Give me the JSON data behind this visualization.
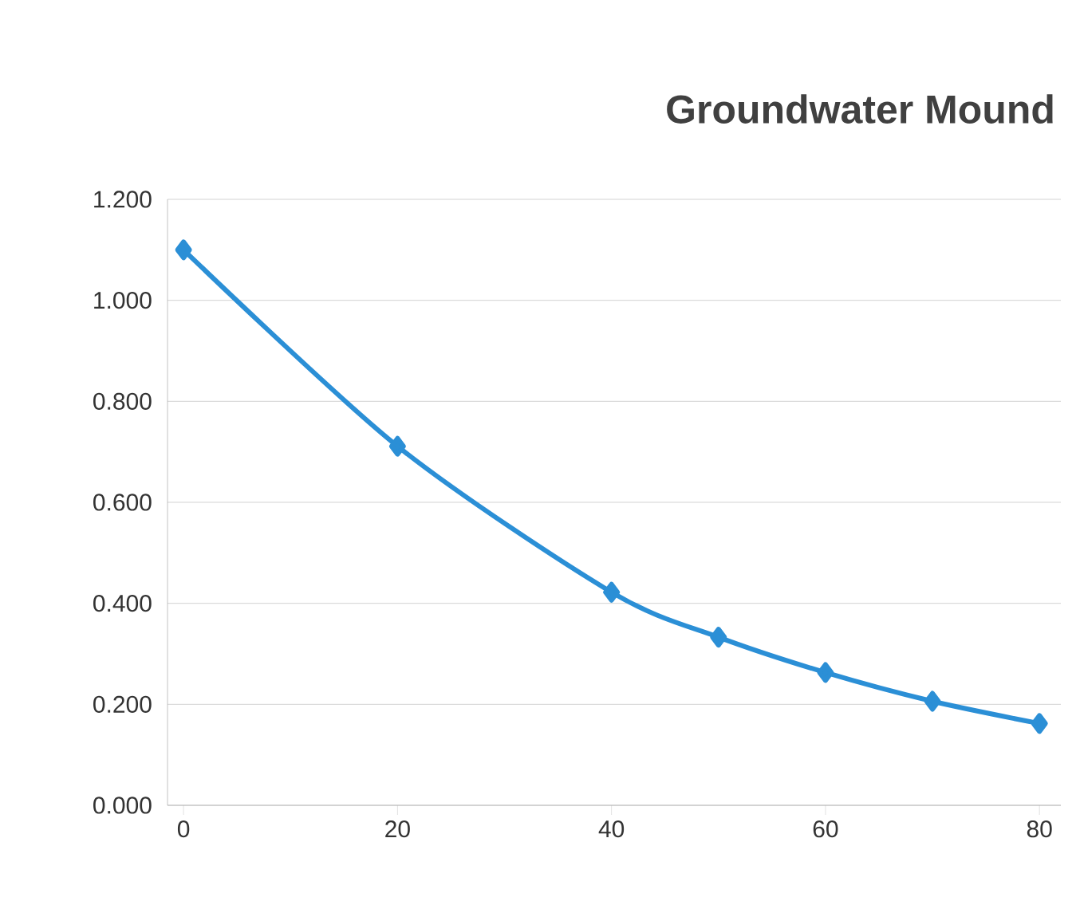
{
  "chart_data": {
    "type": "line",
    "title": "Groundwater Mound",
    "x": [
      0,
      20,
      40,
      50,
      60,
      70,
      80
    ],
    "series": [
      {
        "color": "#2b8fd6",
        "values": [
          1.1,
          0.711,
          0.422,
          0.333,
          0.263,
          0.206,
          0.162
        ]
      }
    ],
    "xlim": [
      -1.5,
      82
    ],
    "xticks": [
      0,
      20,
      40,
      60,
      80
    ],
    "ylim": [
      0,
      1.2
    ],
    "yticks": [
      {
        "value": 0,
        "label": "0.000"
      },
      {
        "value": 0.2,
        "label": "0.200"
      },
      {
        "value": 0.4,
        "label": "0.400"
      },
      {
        "value": 0.6,
        "label": "0.600"
      },
      {
        "value": 0.8,
        "label": "0.800"
      },
      {
        "value": 1.0,
        "label": "1.000"
      },
      {
        "value": 1.2,
        "label": "1.200"
      }
    ],
    "grid": "y",
    "marker": "diamond",
    "line_style": "solid"
  }
}
